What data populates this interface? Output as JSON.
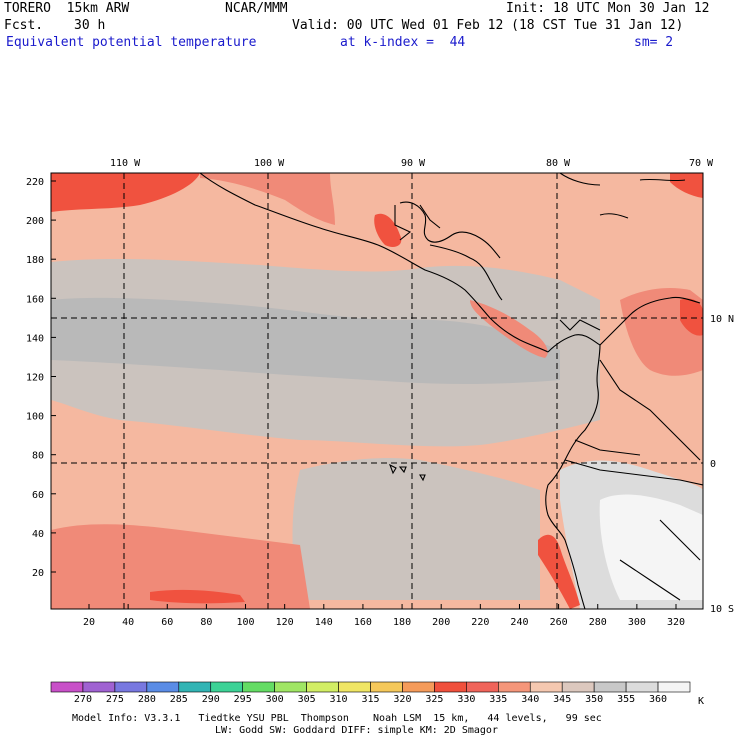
{
  "header": {
    "model": "TORERO  15km ARW",
    "org": "NCAR/MMM",
    "init": "Init: 18 UTC Mon 30 Jan 12",
    "fcst_label": "Fcst.",
    "fcst_value": "30 h",
    "valid": "Valid: 00 UTC Wed 01 Feb 12 (18 CST Tue 31 Jan 12)",
    "field": "Equivalent potential temperature",
    "level": "at k-index =  44",
    "smooth": "sm= 2"
  },
  "map": {
    "top_lon_labels": [
      "110 W",
      "100 W",
      "90 W",
      "80 W",
      "70 W"
    ],
    "right_lat_labels": [
      "10 N",
      "0",
      "10 S"
    ],
    "y_axis_ticks": [
      "220",
      "200",
      "180",
      "160",
      "140",
      "120",
      "100",
      "80",
      "60",
      "40",
      "20"
    ],
    "x_axis_ticks": [
      "20",
      "40",
      "60",
      "80",
      "100",
      "120",
      "140",
      "160",
      "180",
      "200",
      "220",
      "240",
      "260",
      "280",
      "300",
      "320"
    ],
    "colors": {
      "c325": "#f58f6e",
      "c330": "#f0523f",
      "c335": "#f08a78",
      "c340": "#f5b8a0",
      "c345": "#f0c8b4",
      "c350": "#cbc3be",
      "c355": "#b9b9b9",
      "c360": "#dcdcdc",
      "c365": "#f5f5f5"
    }
  },
  "colorbar": {
    "labels": [
      "270",
      "275",
      "280",
      "285",
      "290",
      "295",
      "300",
      "305",
      "310",
      "315",
      "320",
      "325",
      "330",
      "335",
      "340",
      "345",
      "350",
      "355",
      "360"
    ],
    "unit": "K",
    "colors": [
      "#c850c8",
      "#a062d2",
      "#7878e0",
      "#5a8ce6",
      "#32b4b4",
      "#3cd296",
      "#64dc64",
      "#a0e664",
      "#d2ee64",
      "#f0e664",
      "#f5c85a",
      "#f59b5a",
      "#f0503c",
      "#f0645a",
      "#f5967a",
      "#f5c8b0",
      "#dcc8be",
      "#c8c8c8",
      "#dcdcdc",
      "#f5f5f5"
    ]
  },
  "footer": {
    "line1": "Model Info: V3.3.1   Tiedtke YSU PBL  Thompson    Noah LSM  15 km,   44 levels,   99 sec",
    "line2": "LW: Godd SW: Goddard DIFF: simple KM: 2D Smagor"
  }
}
